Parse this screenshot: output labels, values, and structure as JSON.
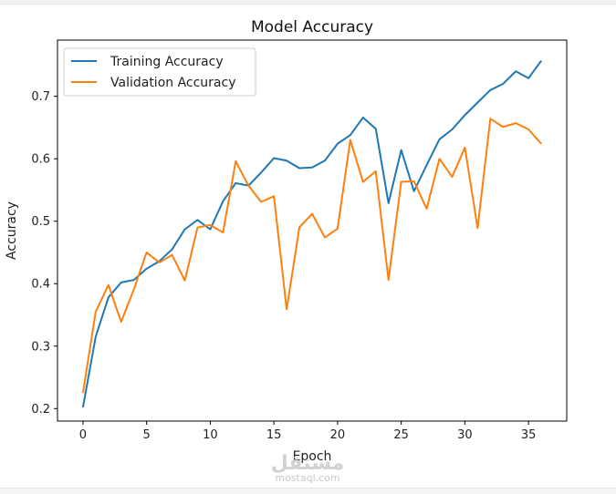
{
  "chart_data": {
    "type": "line",
    "title": "Model Accuracy",
    "xlabel": "Epoch",
    "ylabel": "Accuracy",
    "xlim": [
      -2.0,
      38.0
    ],
    "ylim": [
      0.18,
      0.79
    ],
    "xticks": [
      0,
      5,
      10,
      15,
      20,
      25,
      30,
      35
    ],
    "yticks": [
      0.2,
      0.3,
      0.4,
      0.5,
      0.6,
      0.7
    ],
    "grid": false,
    "legend_position": "top-left",
    "x": [
      0,
      1,
      2,
      3,
      4,
      5,
      6,
      7,
      8,
      9,
      10,
      11,
      12,
      13,
      14,
      15,
      16,
      17,
      18,
      19,
      20,
      21,
      22,
      23,
      24,
      25,
      26,
      27,
      28,
      29,
      30,
      31,
      32,
      33,
      34,
      35,
      36
    ],
    "series": [
      {
        "name": "Training Accuracy",
        "color": "#1f77b4",
        "values": [
          0.202,
          0.315,
          0.378,
          0.402,
          0.406,
          0.424,
          0.436,
          0.455,
          0.487,
          0.502,
          0.487,
          0.532,
          0.561,
          0.557,
          0.578,
          0.601,
          0.597,
          0.585,
          0.586,
          0.597,
          0.624,
          0.638,
          0.666,
          0.648,
          0.529,
          0.614,
          0.548,
          0.59,
          0.631,
          0.647,
          0.67,
          0.69,
          0.71,
          0.72,
          0.74,
          0.729,
          0.757
        ]
      },
      {
        "name": "Validation Accuracy",
        "color": "#ff7f0e",
        "values": [
          0.225,
          0.355,
          0.398,
          0.339,
          0.391,
          0.45,
          0.434,
          0.446,
          0.405,
          0.49,
          0.494,
          0.482,
          0.596,
          0.557,
          0.531,
          0.54,
          0.359,
          0.49,
          0.512,
          0.474,
          0.488,
          0.63,
          0.563,
          0.58,
          0.406,
          0.563,
          0.564,
          0.52,
          0.6,
          0.571,
          0.618,
          0.489,
          0.664,
          0.651,
          0.657,
          0.647,
          0.624
        ]
      }
    ]
  },
  "watermark": {
    "logo_text": "مستقل",
    "site_text": "mostaql.com"
  }
}
